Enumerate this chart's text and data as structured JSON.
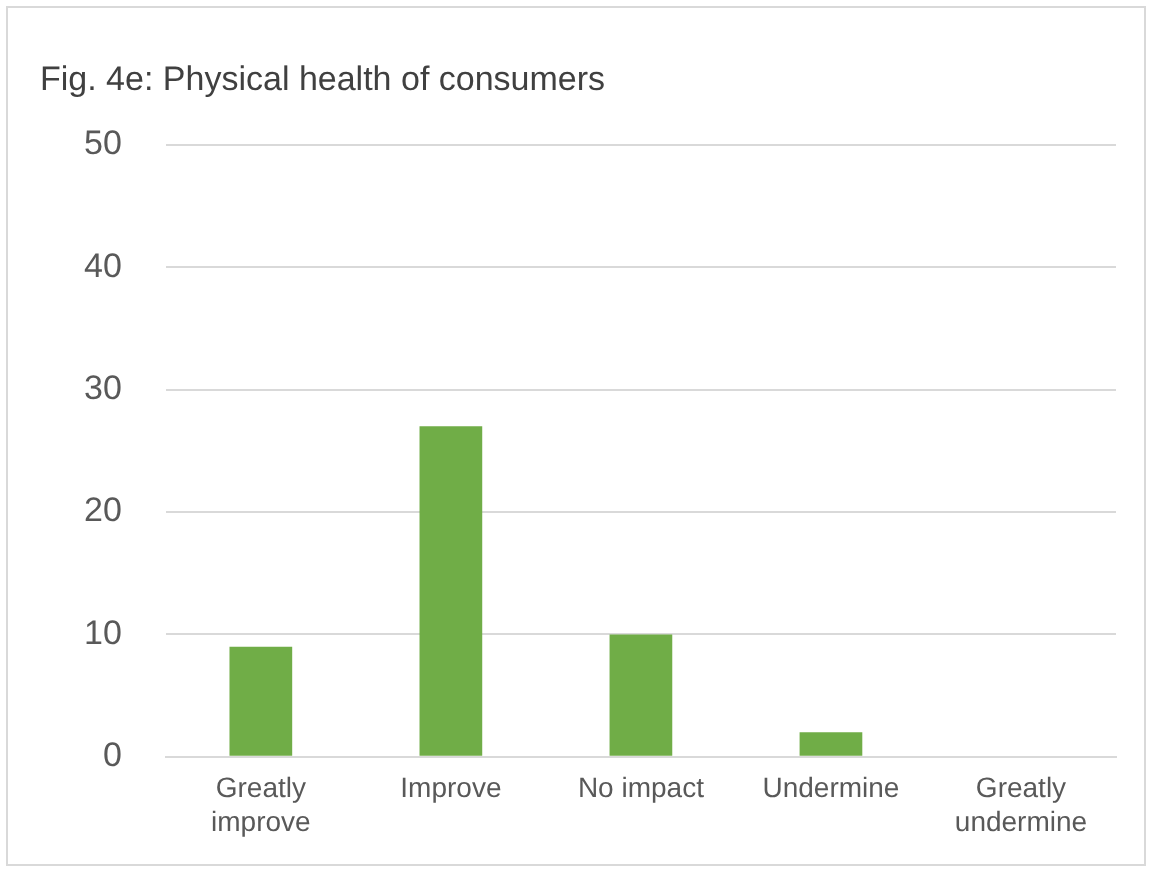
{
  "chart_data": {
    "type": "bar",
    "title": "Fig. 4e: Physical health of consumers",
    "categories": [
      "Greatly improve",
      "Improve",
      "No impact",
      "Undermine",
      "Greatly undermine"
    ],
    "values": [
      9,
      27,
      10,
      2,
      0
    ],
    "color": "#70ad47",
    "ylim": [
      0,
      50
    ],
    "yticks": [
      0,
      10,
      20,
      30,
      40,
      50
    ],
    "grid": "y"
  }
}
